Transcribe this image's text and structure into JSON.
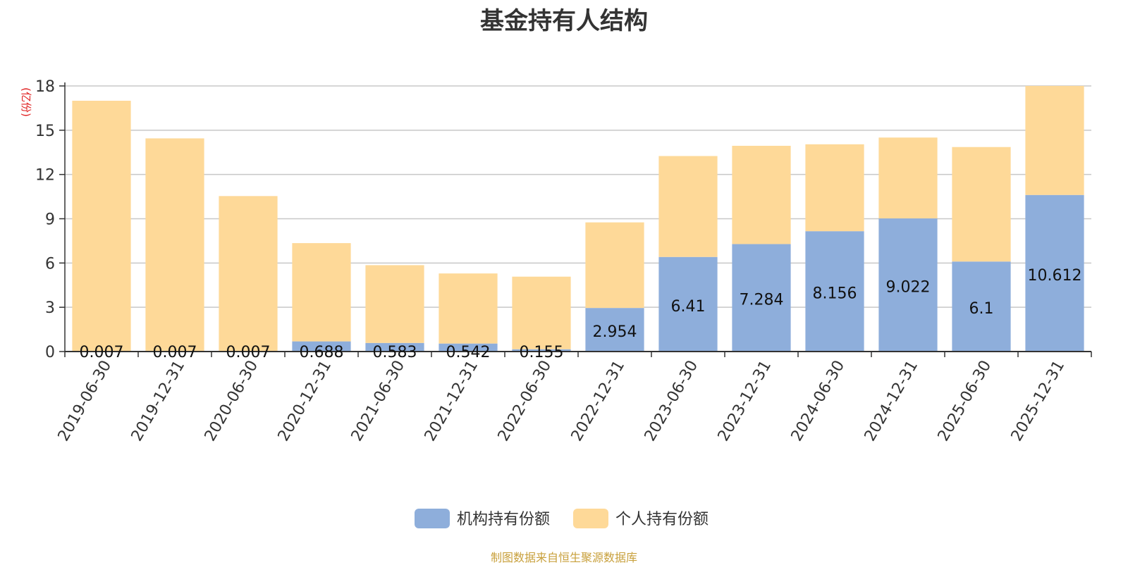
{
  "chart_data": {
    "type": "bar",
    "stacked": true,
    "title": "基金持有人结构",
    "ylabel": "(亿份)",
    "ylim": [
      0,
      18
    ],
    "yticks": [
      0,
      3,
      6,
      9,
      12,
      15,
      18
    ],
    "grid": true,
    "legend_position": "bottom",
    "source_note": "制图数据来自恒生聚源数据库",
    "categories": [
      "2019-06-30",
      "2019-12-31",
      "2020-06-30",
      "2020-12-31",
      "2021-06-30",
      "2021-12-31",
      "2022-06-30",
      "2022-12-31",
      "2023-06-30",
      "2023-12-31",
      "2024-06-30",
      "2024-12-31",
      "2025-06-30",
      "2025-12-31"
    ],
    "series": [
      {
        "name": "机构持有份额",
        "color": "#8eaedb",
        "values": [
          0.007,
          0.007,
          0.007,
          0.688,
          0.583,
          0.542,
          0.155,
          2.954,
          6.41,
          7.284,
          8.156,
          9.022,
          6.1,
          10.612
        ],
        "labels": [
          "0.007",
          "0.007",
          "0.007",
          "0.688",
          "0.583",
          "0.542",
          "0.155",
          "2.954",
          "6.41",
          "7.284",
          "8.156",
          "9.022",
          "6.1",
          "10.612"
        ]
      },
      {
        "name": "个人持有份额",
        "color": "#fed998",
        "values": [
          16.99,
          14.44,
          10.53,
          6.66,
          5.27,
          4.75,
          4.92,
          5.8,
          6.84,
          6.66,
          5.89,
          5.48,
          7.76,
          7.39
        ]
      }
    ]
  }
}
